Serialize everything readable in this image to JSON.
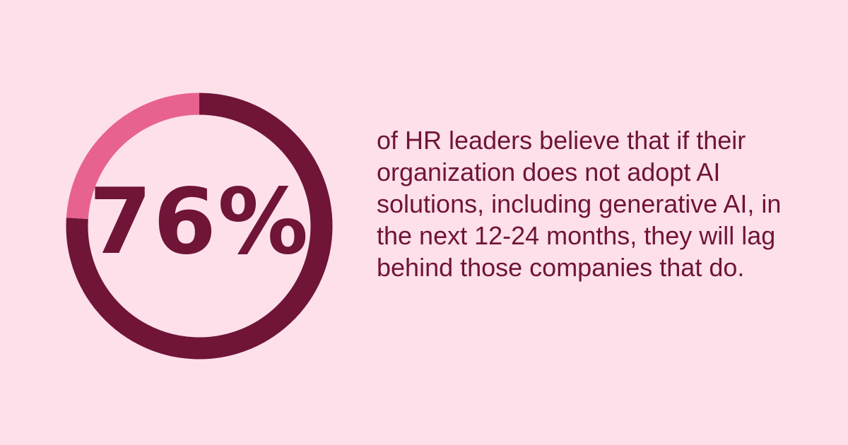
{
  "chart_data": {
    "type": "pie",
    "style": "donut",
    "values": [
      76,
      24
    ],
    "colors": [
      "#701438",
      "#e8628f"
    ],
    "center_label": "76%"
  },
  "background_color": "#fde0ea",
  "description": "of HR leaders believe that if their organization does not adopt AI solutions, including generative AI, in the next 12-24 months, they will lag behind those companies that do."
}
